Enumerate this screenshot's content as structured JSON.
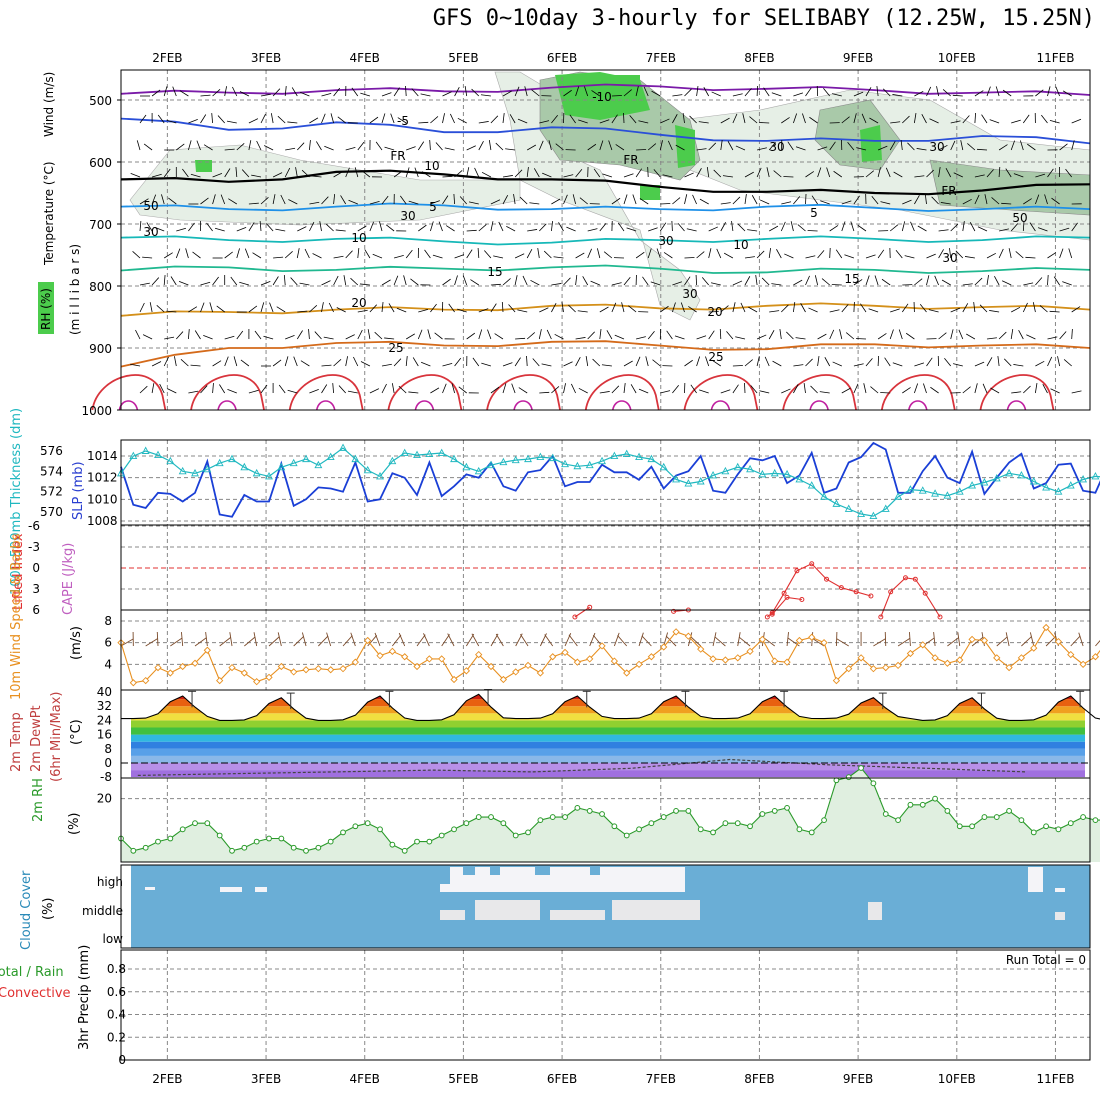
{
  "title": "GFS 0~10day 3-hourly for SELIBABY (12.25W, 15.25N)",
  "colors": {
    "grid": "#888888",
    "rh_green": "#4ccc4c",
    "rh_light": "#e0efe0",
    "slp": "#1a3fd6",
    "thickness": "#20b8c0",
    "lifted": "#e03030",
    "wind10": "#e89020",
    "rh2m": "#2a9a2a",
    "cloud_blue": "#6aaed6",
    "cloud_white": "#f4f4f8"
  },
  "chart_data": [
    {
      "panel": "upper_air",
      "type": "contour",
      "x_days": [
        "2FEB",
        "3FEB",
        "4FEB",
        "5FEB",
        "6FEB",
        "7FEB",
        "8FEB",
        "9FEB",
        "10FEB",
        "11FEB"
      ],
      "ylabel_parts": [
        "RH (%)",
        "Temperature (°C)",
        "Wind (m/s)",
        "(m i l l i b a r s)"
      ],
      "yticks": [
        "500",
        "600",
        "700",
        "800",
        "900",
        "1000"
      ],
      "isotherm_labels": [
        "-10",
        "-5",
        "FR",
        "5",
        "10",
        "15",
        "20",
        "25"
      ],
      "rh_labels": [
        "30",
        "50",
        "30",
        "50",
        "30"
      ],
      "isotherms": [
        {
          "label": "-10",
          "color": "#7a1aa8",
          "p": [
            490,
            488,
            484,
            486,
            480,
            478,
            482,
            484,
            488,
            492
          ]
        },
        {
          "label": "-5",
          "color": "#2a4fd8",
          "p": [
            530,
            548,
            536,
            552,
            544,
            556,
            566,
            566,
            558,
            570
          ]
        },
        {
          "label": "FR",
          "color": "#000000",
          "p": [
            628,
            632,
            616,
            620,
            628,
            640,
            648,
            650,
            646,
            636
          ]
        },
        {
          "label": "5",
          "color": "#1e90e8",
          "p": [
            672,
            676,
            672,
            670,
            676,
            676,
            672,
            674,
            676,
            676
          ]
        },
        {
          "label": "10",
          "color": "#16b8b8",
          "p": [
            722,
            726,
            724,
            728,
            730,
            726,
            724,
            724,
            726,
            722
          ]
        },
        {
          "label": "15",
          "color": "#20b890",
          "p": [
            775,
            770,
            774,
            772,
            770,
            772,
            778,
            774,
            776,
            774
          ]
        },
        {
          "label": "20",
          "color": "#d4901a",
          "p": [
            848,
            842,
            838,
            838,
            832,
            836,
            832,
            832,
            834,
            838
          ]
        },
        {
          "label": "25",
          "color": "#d46a1a",
          "p": [
            930,
            900,
            892,
            896,
            890,
            896,
            902,
            894,
            896,
            900
          ]
        }
      ]
    },
    {
      "panel": "slp_thickness",
      "type": "line",
      "ylabel_left": "1000-500mb Thickness (dm)",
      "ylabel_right": "SLP (mb)",
      "y_left_ticks": [
        "570",
        "572",
        "574",
        "576"
      ],
      "y_right_ticks": [
        "1008",
        "1010",
        "1012",
        "1014"
      ],
      "series": [
        {
          "name": "SLP (mb)",
          "axis": "right",
          "values": [
            1013,
            1009.5,
            1009.2,
            1010.6,
            1010.5,
            1009.8,
            1010.6,
            1013.5,
            1008.6,
            1008.4,
            1010.4,
            1009.8,
            1009.8,
            1013.3,
            1009.4,
            1010,
            1011.1,
            1011,
            1010.7,
            1013.4,
            1009.8,
            1010,
            1012.4,
            1012,
            1010.4,
            1013.4,
            1010.3,
            1011.2,
            1012.3,
            1012,
            1013.4,
            1011.2,
            1010.8,
            1012.5,
            1012.7,
            1014,
            1011.2,
            1011.6,
            1011.6,
            1013.2,
            1012.5,
            1012.5,
            1011.8,
            1013,
            1011,
            1012.2,
            1012.6,
            1014,
            1010.8,
            1010.6,
            1012.3,
            1013.8,
            1013.6,
            1014,
            1011.5,
            1012.2,
            1014.3,
            1010.6,
            1011,
            1013.4,
            1013.9,
            1015.2,
            1014.6,
            1010.6,
            1010.6,
            1012.6,
            1014,
            1012,
            1011.5,
            1014.4,
            1010.5,
            1012,
            1013.4,
            1014.2,
            1011,
            1011.5,
            1013.2,
            1013.3,
            1010.8,
            1010.6,
            1013.2,
            1011.5,
            1012.8
          ]
        },
        {
          "name": "Thickness (dm)",
          "axis": "left",
          "values": [
            573.8,
            575.5,
            576,
            575.6,
            575,
            574,
            573.8,
            574.2,
            574.8,
            575.2,
            574.4,
            573.8,
            573.5,
            574.4,
            574.8,
            575.2,
            574.6,
            575.4,
            576.3,
            575.2,
            574.1,
            573.5,
            575,
            575.8,
            575.6,
            575.7,
            575.8,
            575.2,
            574.4,
            574,
            574.6,
            574.9,
            575.1,
            575.2,
            575.4,
            575.3,
            574.7,
            574.5,
            574.6,
            575,
            575.5,
            575.7,
            575.4,
            575.2,
            574.4,
            573.2,
            572.8,
            573,
            573.6,
            574,
            574.4,
            574.2,
            573.7,
            573.8,
            573.7,
            573.2,
            572.6,
            571.5,
            570.8,
            570.3,
            569.8,
            569.6,
            570.3,
            571.5,
            572.2,
            572.1,
            571.8,
            571.6,
            572,
            572.6,
            572.9,
            573.3,
            573.8,
            573.6,
            573,
            572.4,
            572,
            572.6,
            573.2,
            573.5,
            573.4,
            572.8,
            572.4
          ]
        }
      ]
    },
    {
      "panel": "lifted_cape",
      "type": "line",
      "ylabel": "Lifted Index",
      "ylabel2": "CAPE (J/kg)",
      "yticks": [
        "-6",
        "-3",
        "0",
        "3",
        "6"
      ],
      "series": [
        {
          "name": "Lifted Index",
          "segments": [
            {
              "x": [
                4.6,
                4.75
              ],
              "y": [
                7,
                5.6
              ]
            },
            {
              "x": [
                5.6,
                5.75
              ],
              "y": [
                6.2,
                6
              ]
            },
            {
              "x": [
                6.6,
                6.75,
                6.9
              ],
              "y": [
                6.6,
                4.2,
                4.5
              ]
            },
            {
              "x": [
                6.55,
                6.6,
                6.72,
                6.85,
                7.0,
                7.15,
                7.3,
                7.45,
                7.6
              ],
              "y": [
                9,
                6.4,
                3.6,
                0.4,
                -0.6,
                1.6,
                2.8,
                3.4,
                4.0
              ]
            },
            {
              "x": [
                7.7,
                7.8,
                7.95,
                8.05,
                8.15,
                8.3
              ],
              "y": [
                7.8,
                3.4,
                1.4,
                1.6,
                3.6,
                7.4
              ]
            }
          ]
        }
      ]
    },
    {
      "panel": "wind10m",
      "type": "line",
      "ylabel": "10m Wind Speed & Barbs",
      "unit": "(m/s)",
      "yticks": [
        "4",
        "6",
        "8"
      ],
      "series": [
        {
          "name": "10m Wind Speed (m/s)",
          "values": [
            6,
            2.3,
            2.5,
            3.7,
            3.2,
            3.8,
            4.1,
            5.3,
            2.5,
            3.7,
            3.2,
            2.4,
            2.8,
            3.8,
            3.3,
            3.5,
            3.6,
            3.5,
            3.6,
            4.2,
            6.2,
            4.8,
            5.2,
            4.7,
            3.8,
            4.5,
            4.5,
            2.6,
            3.4,
            4.9,
            3.8,
            2.6,
            3.3,
            3.9,
            3.2,
            4.7,
            5.1,
            4.2,
            4.5,
            5.7,
            4.3,
            3.2,
            4,
            4.7,
            5.6,
            7,
            6.6,
            5.4,
            4.5,
            4.4,
            4.6,
            5.2,
            6.3,
            4.3,
            4.2,
            6.2,
            6.5,
            6,
            2.5,
            3.6,
            4.6,
            3.6,
            3.7,
            3.9,
            5,
            5.8,
            4.6,
            4.1,
            4.4,
            6.3,
            6.2,
            4.6,
            3.7,
            4.6,
            5.5,
            7.4,
            6.1,
            4.9,
            4,
            4.7,
            6.2,
            6.4,
            7
          ]
        }
      ]
    },
    {
      "panel": "temp2m",
      "type": "area",
      "ylabel": "2m Temp 2m DewPt (6hr Min/Max)",
      "unit": "(°C)",
      "yticks": [
        "-8",
        "0",
        "8",
        "16",
        "24",
        "32",
        "40"
      ],
      "series": [
        {
          "name": "2m Temp max (°C)",
          "values": [
            38,
            37,
            38,
            39,
            38,
            38,
            38,
            37,
            37,
            38
          ]
        },
        {
          "name": "2m Temp min (°C)",
          "values": [
            25,
            24,
            24,
            24,
            25,
            25,
            25,
            25,
            24,
            24
          ]
        },
        {
          "name": "2m DewPt (°C)",
          "values": [
            -7,
            -6,
            -5,
            -4,
            -5,
            -3,
            2,
            -1,
            -3,
            -5
          ]
        }
      ]
    },
    {
      "panel": "rh2m",
      "type": "line",
      "ylabel": "2m RH",
      "unit": "(%)",
      "yticks": [
        "20"
      ],
      "series": [
        {
          "name": "2m RH (%)",
          "values": [
            7,
            3,
            4,
            6,
            7,
            10,
            12,
            12,
            8,
            3,
            4,
            6,
            7,
            7,
            4,
            3,
            4,
            6,
            9,
            11,
            12,
            10,
            5,
            3,
            6,
            6,
            8,
            10,
            12,
            14,
            14,
            12,
            8,
            9,
            13,
            14,
            14,
            17,
            16,
            15,
            11,
            8,
            10,
            12,
            14,
            16,
            16,
            10,
            9,
            12,
            12,
            11,
            15,
            16,
            17,
            10,
            9,
            13,
            26,
            27,
            30,
            25,
            15,
            13,
            18,
            18,
            20,
            16,
            11,
            11,
            14,
            14,
            16,
            13,
            9,
            11,
            10,
            12,
            14,
            13,
            13,
            9,
            11
          ]
        }
      ]
    },
    {
      "panel": "cloud",
      "type": "heatmap",
      "ylabel": "Cloud Cover",
      "unit": "(%)",
      "levels": [
        "high",
        "middle",
        "low"
      ]
    },
    {
      "panel": "precip",
      "type": "bar",
      "ylabel": "3hr Precip (mm)",
      "ylabel_left": "Total / Rain",
      "ylabel_left2": "Convective",
      "yticks": [
        "0",
        "0.2",
        "0.4",
        "0.6",
        "0.8"
      ],
      "run_total": "Run Total = 0",
      "values": []
    }
  ]
}
